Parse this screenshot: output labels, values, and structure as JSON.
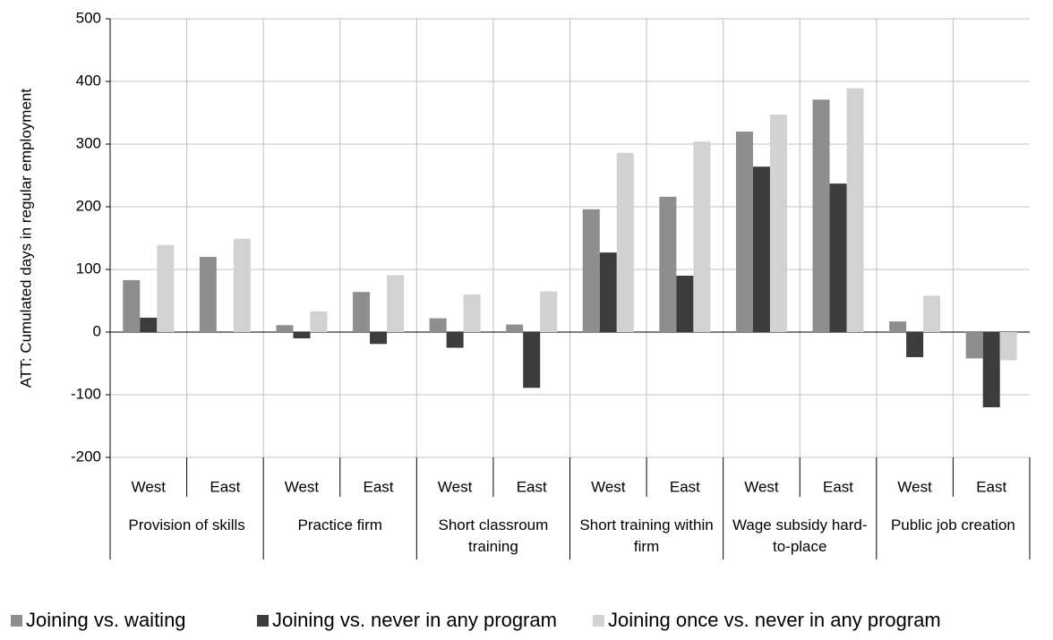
{
  "chart_data": {
    "type": "bar",
    "y_label": "ATT: Cumulated days in regular employment",
    "categories": [
      "West",
      "East",
      "West",
      "East",
      "West",
      "East",
      "West",
      "East",
      "West",
      "East",
      "West",
      "East"
    ],
    "groups": [
      "Provision of skills",
      "Practice firm",
      "Short classroum training",
      "Short training within firm",
      "Wage subsidy hard-to-place",
      "Public job creation"
    ],
    "series": [
      {
        "name": "Joining vs. waiting",
        "color": "#8e8e8e",
        "values": [
          83,
          120,
          11,
          64,
          22,
          12,
          196,
          216,
          320,
          371,
          17,
          -42
        ]
      },
      {
        "name": "Joining vs. never in any program",
        "color": "#3c3c3c",
        "values": [
          23,
          null,
          -10,
          -19,
          -25,
          -89,
          127,
          90,
          264,
          237,
          -40,
          -120
        ]
      },
      {
        "name": "Joining once vs. never in any program",
        "color": "#d2d2d2",
        "values": [
          139,
          149,
          33,
          91,
          60,
          65,
          286,
          304,
          347,
          389,
          58,
          -45
        ]
      }
    ],
    "ylim": [
      -200,
      500
    ],
    "yticks": [
      -200,
      -100,
      0,
      100,
      200,
      300,
      400,
      500
    ],
    "grid": true
  }
}
